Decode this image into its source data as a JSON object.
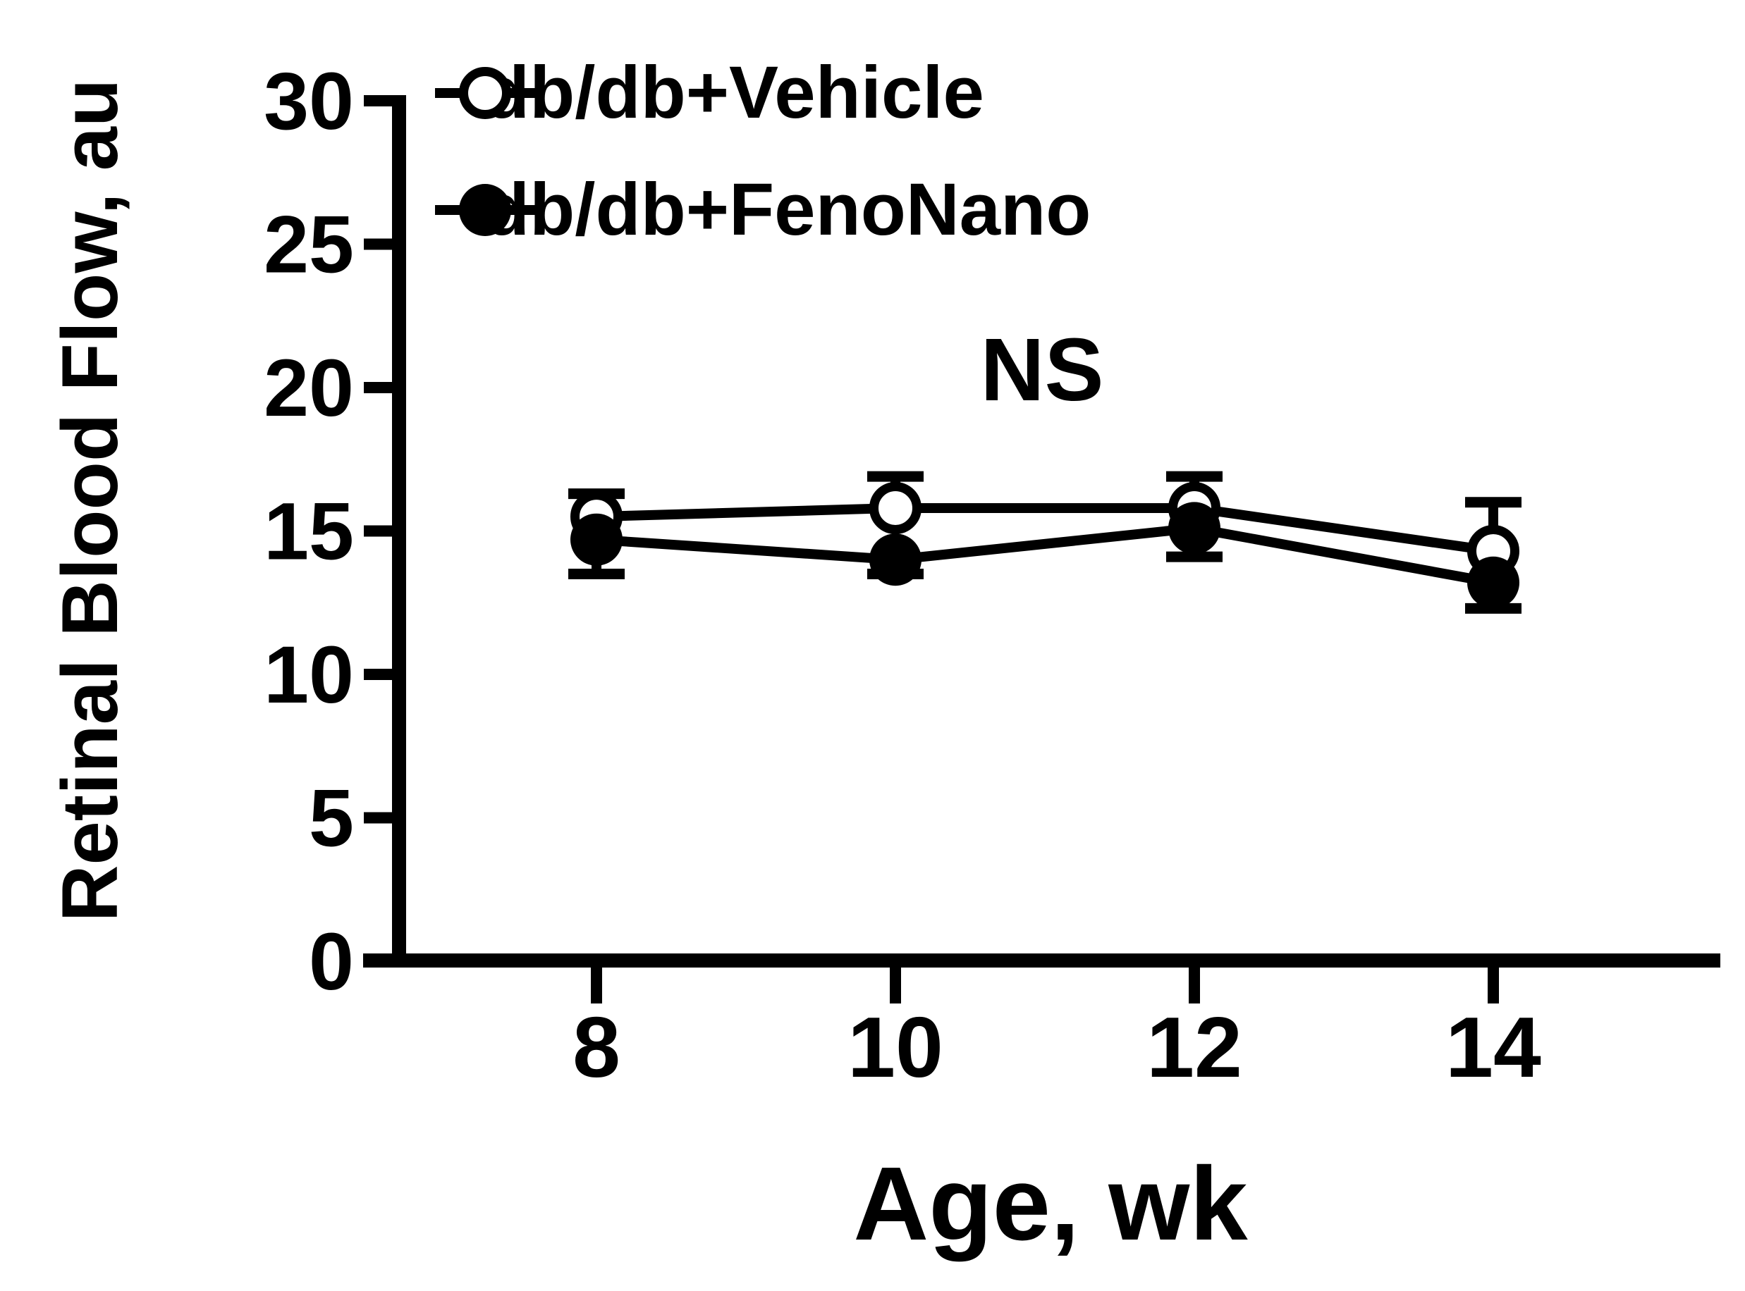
{
  "figure": {
    "background": "#ffffff",
    "ink": "#000000",
    "ylabel": "Retinal Blood Flow, au",
    "xlabel": "Age, wk",
    "annotation": "NS"
  },
  "legend": {
    "items": [
      {
        "label": "db/db+Vehicle",
        "marker": "open-circle"
      },
      {
        "label": "db/db+FenoNano",
        "marker": "filled-circle"
      }
    ]
  },
  "chart_data": {
    "type": "line",
    "title": "",
    "xlabel": "Age, wk",
    "ylabel": "Retinal Blood Flow, au",
    "x": [
      8,
      10,
      12,
      14
    ],
    "xticks": [
      8,
      10,
      12,
      14
    ],
    "yticks": [
      0,
      5,
      10,
      15,
      20,
      25,
      30
    ],
    "ylim": [
      0,
      30
    ],
    "grid": false,
    "legend_position": "top-left-inside",
    "series": [
      {
        "name": "db/db+Vehicle",
        "marker": "open-circle",
        "color": "#000000",
        "values": [
          15.5,
          15.8,
          15.8,
          14.3
        ],
        "err_up": [
          0.8,
          1.1,
          1.1,
          1.7
        ],
        "err_down": [
          0,
          0,
          0,
          0
        ]
      },
      {
        "name": "db/db+FenoNano",
        "marker": "filled-circle",
        "color": "#000000",
        "values": [
          14.7,
          14.0,
          15.1,
          13.2
        ],
        "err_up": [
          0,
          0,
          0,
          0
        ],
        "err_down": [
          1.2,
          0.5,
          1.0,
          0.9
        ]
      }
    ],
    "annotations": [
      {
        "text": "NS",
        "x": 11,
        "y": 20.5
      }
    ]
  }
}
